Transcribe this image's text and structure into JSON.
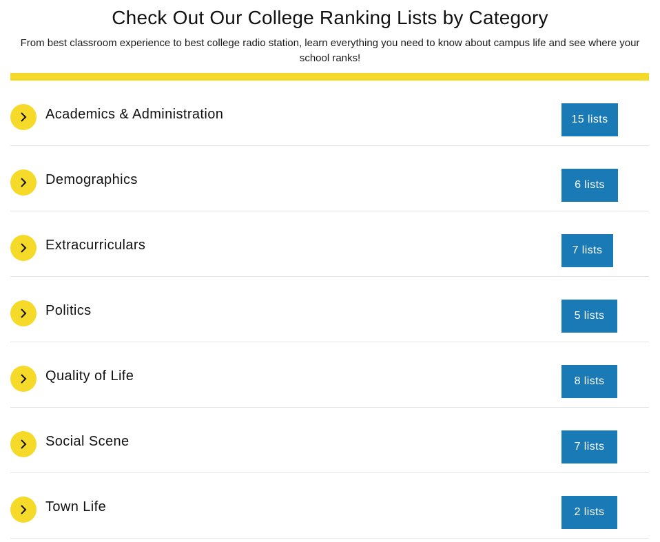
{
  "header": {
    "title": "Check Out Our College Ranking Lists by Category",
    "subtitle": "From best classroom experience to best college radio station, learn everything you need to know about campus life and see where your school ranks!"
  },
  "colors": {
    "accent_yellow": "#f6da2a",
    "button_blue": "#1a7ab5",
    "divider_gray": "#e3e3e3"
  },
  "categories": [
    {
      "label": "Academics & Administration",
      "count_label": "15 lists",
      "icon": "chevron-right-icon"
    },
    {
      "label": "Demographics",
      "count_label": "6 lists",
      "icon": "chevron-right-icon"
    },
    {
      "label": "Extracurriculars",
      "count_label": "7 lists",
      "icon": "chevron-right-icon"
    },
    {
      "label": "Politics",
      "count_label": "5 lists",
      "icon": "chevron-right-icon"
    },
    {
      "label": "Quality of Life",
      "count_label": "8 lists",
      "icon": "chevron-right-icon"
    },
    {
      "label": "Social Scene",
      "count_label": "7 lists",
      "icon": "chevron-right-icon"
    },
    {
      "label": "Town Life",
      "count_label": "2 lists",
      "icon": "chevron-right-icon"
    }
  ]
}
